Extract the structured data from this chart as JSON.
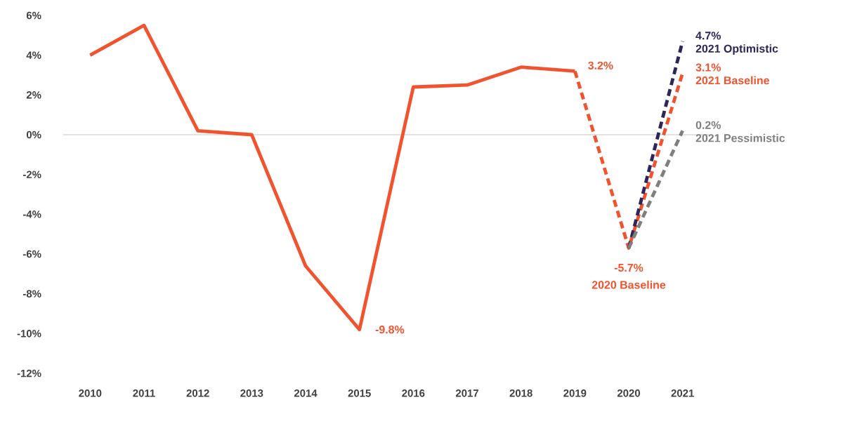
{
  "chart_data": {
    "type": "line",
    "categories": [
      "2010",
      "2011",
      "2012",
      "2013",
      "2014",
      "2015",
      "2016",
      "2017",
      "2018",
      "2019",
      "2020",
      "2021"
    ],
    "series": [
      {
        "color": "#f0532d",
        "line_style": "solid",
        "values": [
          4.0,
          5.5,
          0.2,
          0.0,
          -6.6,
          -9.8,
          2.4,
          2.5,
          3.4,
          3.2,
          null,
          null
        ],
        "value_labels": [
          null,
          null,
          null,
          null,
          null,
          "-9.8%",
          null,
          null,
          null,
          "3.2%",
          null,
          null
        ]
      },
      {
        "color": "#f0532d",
        "line_style": "dashed",
        "values": [
          null,
          null,
          null,
          null,
          null,
          null,
          null,
          null,
          null,
          3.2,
          -5.7,
          3.1
        ],
        "value_labels": [
          null,
          null,
          null,
          null,
          null,
          null,
          null,
          null,
          null,
          null,
          "-5.7%",
          "3.1%"
        ]
      },
      {
        "color": "#2e2558",
        "line_style": "dashed",
        "values": [
          null,
          null,
          null,
          null,
          null,
          null,
          null,
          null,
          null,
          null,
          -5.7,
          4.7
        ],
        "value_labels": [
          null,
          null,
          null,
          null,
          null,
          null,
          null,
          null,
          null,
          null,
          null,
          "4.7%"
        ]
      },
      {
        "color": "#7f7f7f",
        "line_style": "dashed",
        "values": [
          null,
          null,
          null,
          null,
          null,
          null,
          null,
          null,
          null,
          null,
          -5.7,
          0.2
        ],
        "value_labels": [
          null,
          null,
          null,
          null,
          null,
          null,
          null,
          null,
          null,
          null,
          null,
          "0.2%"
        ]
      }
    ],
    "ylim": [
      -12,
      6
    ],
    "yticks": [
      {
        "value": -12,
        "label": "-12%"
      },
      {
        "value": -10,
        "label": "-10%"
      },
      {
        "value": -8,
        "label": "-8%"
      },
      {
        "value": -6,
        "label": "-6%"
      },
      {
        "value": -4,
        "label": "-4%"
      },
      {
        "value": -2,
        "label": "-2%"
      },
      {
        "value": 0,
        "label": "0%"
      },
      {
        "value": 2,
        "label": "2%"
      },
      {
        "value": 4,
        "label": "4%"
      },
      {
        "value": 6,
        "label": "6%"
      }
    ],
    "ref_lines": [
      {
        "axis": "y",
        "value": 0,
        "color": "#d9d9d9"
      }
    ],
    "annotations": [
      {
        "text": "2020 Baseline",
        "x": "2020",
        "y": -5.7
      },
      {
        "text": "2021 Optimistic",
        "x": "2021",
        "y": 4.7
      },
      {
        "text": "2021 Baseline",
        "x": "2021",
        "y": 3.1
      },
      {
        "text": "2021 Pessimistic",
        "x": "2021",
        "y": 0.2
      }
    ]
  }
}
